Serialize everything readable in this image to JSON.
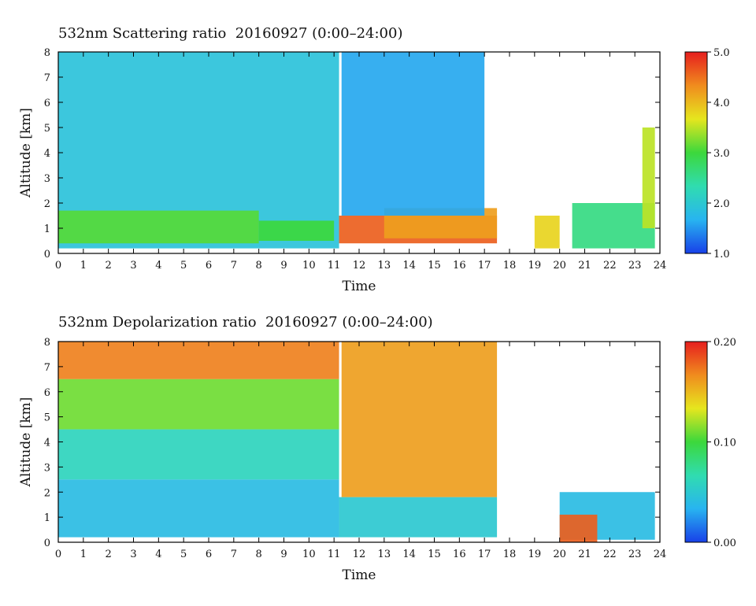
{
  "chart_data": [
    {
      "type": "heatmap",
      "title": "532nm Scattering ratio  20160927 (0:00–24:00)",
      "xlabel": "Time",
      "ylabel": "Altitude [km]",
      "xlim": [
        0,
        24
      ],
      "ylim": [
        0,
        8
      ],
      "x_ticks": [
        "0",
        "1",
        "2",
        "3",
        "4",
        "5",
        "6",
        "7",
        "8",
        "9",
        "10",
        "11",
        "12",
        "13",
        "14",
        "15",
        "16",
        "17",
        "18",
        "19",
        "20",
        "21",
        "22",
        "23",
        "24"
      ],
      "y_ticks": [
        "0",
        "1",
        "2",
        "3",
        "4",
        "5",
        "6",
        "7",
        "8"
      ],
      "colorbar": {
        "min": 1.0,
        "max": 5.0,
        "ticks": [
          "1.0",
          "2.0",
          "3.0",
          "4.0",
          "5.0"
        ],
        "colors": [
          "#1840e8",
          "#28b4f0",
          "#30dcb0",
          "#3cd83c",
          "#e6e61e",
          "#f08c1e",
          "#e61e1e"
        ]
      },
      "scale_name": "sr",
      "regions": [
        {
          "time": [
            0,
            11.2
          ],
          "alt": [
            0.2,
            8
          ],
          "value": 1.9
        },
        {
          "time": [
            0,
            8
          ],
          "alt": [
            0.4,
            1.7
          ],
          "value": 3.1
        },
        {
          "time": [
            8,
            11
          ],
          "alt": [
            0.5,
            1.3
          ],
          "value": 3.0
        },
        {
          "time": [
            11.2,
            17.5
          ],
          "alt": [
            0.4,
            1.5
          ],
          "value": 4.6
        },
        {
          "time": [
            13,
            17.5
          ],
          "alt": [
            0.6,
            1.8
          ],
          "value": 4.2
        },
        {
          "time": [
            19,
            20
          ],
          "alt": [
            0.2,
            1.5
          ],
          "value": 3.8
        },
        {
          "time": [
            20.5,
            23.8
          ],
          "alt": [
            0.2,
            2.0
          ],
          "value": 2.6
        },
        {
          "time": [
            23.3,
            23.8
          ],
          "alt": [
            1.0,
            5.0
          ],
          "value": 3.5
        },
        {
          "time": [
            11.3,
            17
          ],
          "alt": [
            1.5,
            8
          ],
          "value": 1.6
        }
      ]
    },
    {
      "type": "heatmap",
      "title": "532nm Depolarization ratio  20160927 (0:00–24:00)",
      "xlabel": "Time",
      "ylabel": "Altitude [km]",
      "xlim": [
        0,
        24
      ],
      "ylim": [
        0,
        8
      ],
      "x_ticks": [
        "0",
        "1",
        "2",
        "3",
        "4",
        "5",
        "6",
        "7",
        "8",
        "9",
        "10",
        "11",
        "12",
        "13",
        "14",
        "15",
        "16",
        "17",
        "18",
        "19",
        "20",
        "21",
        "22",
        "23",
        "24"
      ],
      "y_ticks": [
        "0",
        "1",
        "2",
        "3",
        "4",
        "5",
        "6",
        "7",
        "8"
      ],
      "colorbar": {
        "min": 0.0,
        "max": 0.2,
        "ticks": [
          "0.00",
          "0.10",
          "0.20"
        ],
        "colors": [
          "#1840e8",
          "#28b4f0",
          "#30dcb0",
          "#3cd83c",
          "#e6e61e",
          "#f08c1e",
          "#e61e1e"
        ]
      },
      "scale_name": "dr",
      "regions": [
        {
          "time": [
            0,
            11.2
          ],
          "alt": [
            6.5,
            8
          ],
          "value": 0.17
        },
        {
          "time": [
            0,
            11.2
          ],
          "alt": [
            4.5,
            6.5
          ],
          "value": 0.11
        },
        {
          "time": [
            0,
            11.2
          ],
          "alt": [
            2.5,
            4.5
          ],
          "value": 0.06
        },
        {
          "time": [
            0,
            11.2
          ],
          "alt": [
            0.2,
            2.5
          ],
          "value": 0.04
        },
        {
          "time": [
            11.2,
            17.5
          ],
          "alt": [
            0.2,
            1.8
          ],
          "value": 0.05
        },
        {
          "time": [
            11.3,
            17.5
          ],
          "alt": [
            1.8,
            8
          ],
          "value": 0.16
        },
        {
          "time": [
            20,
            23.8
          ],
          "alt": [
            0.1,
            2.0
          ],
          "value": 0.04
        },
        {
          "time": [
            20,
            21.5
          ],
          "alt": [
            0,
            1.1
          ],
          "value": 0.18
        }
      ]
    }
  ]
}
